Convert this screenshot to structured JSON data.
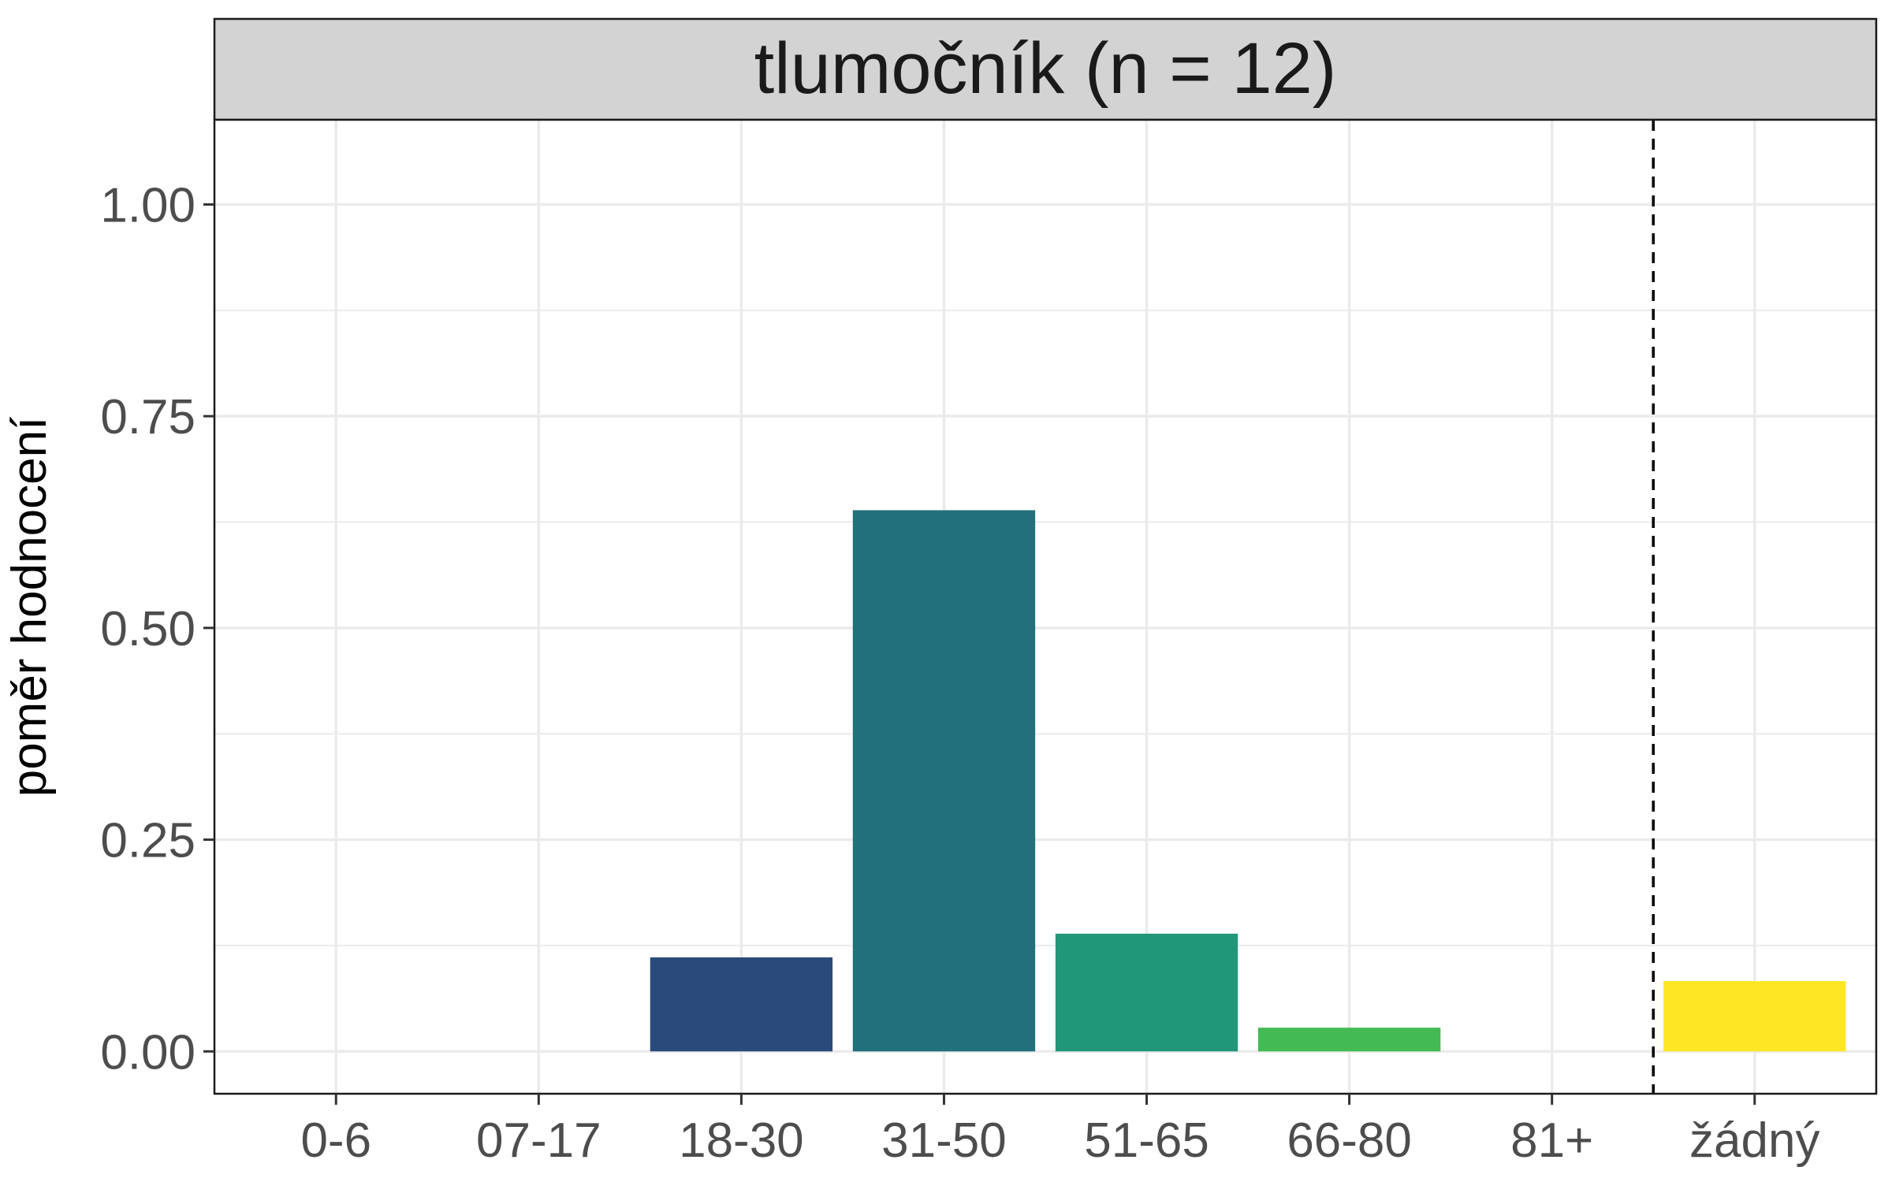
{
  "chart_data": {
    "type": "bar",
    "facet_title": "tlumočník (n = 12)",
    "ylabel": "poměr hodnocení",
    "xlabel": "",
    "categories": [
      "0-6",
      "07-17",
      "18-30",
      "31-50",
      "51-65",
      "66-80",
      "81+",
      "žádný"
    ],
    "values": [
      0,
      0,
      0.111,
      0.639,
      0.139,
      0.028,
      0,
      0.083
    ],
    "colors": [
      "#440154",
      "#46337E",
      "#2A4A7B",
      "#21707B",
      "#219779",
      "#43BA54",
      "#A1D83B",
      "#FDE725"
    ],
    "ylim": [
      -0.05,
      1.1
    ],
    "y_ticks": [
      "0.00",
      "0.25",
      "0.50",
      "0.75",
      "1.00"
    ],
    "reference_line": {
      "style": "dashed",
      "between": [
        "81+",
        "žádný"
      ]
    },
    "grid": true
  }
}
